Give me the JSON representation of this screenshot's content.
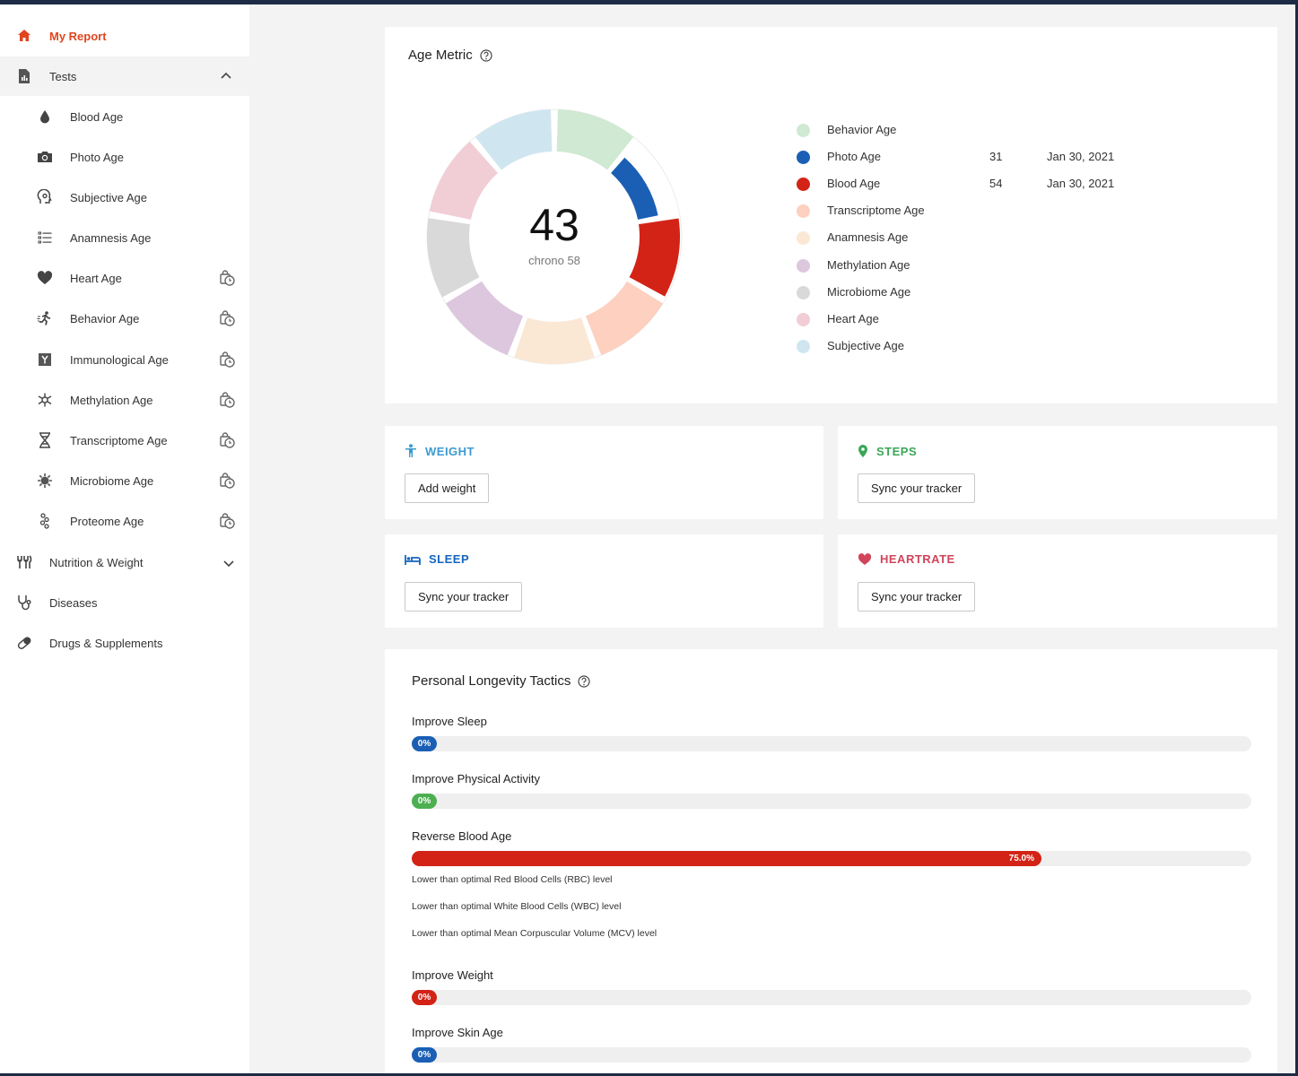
{
  "colors": {
    "accent": "#e0451e",
    "blue": "#1a5fb4",
    "red": "#d32317",
    "green": "#4caf50",
    "weight": "#3b9bd1",
    "sleep": "#1565c0",
    "heartrate": "#d0455b",
    "steps": "#3aa757"
  },
  "sidebar": {
    "my_report": "My Report",
    "tests": "Tests",
    "sub_items": [
      {
        "label": "Blood Age",
        "icon": "drop-icon"
      },
      {
        "label": "Photo Age",
        "icon": "camera-icon"
      },
      {
        "label": "Subjective Age",
        "icon": "head-icon"
      },
      {
        "label": "Anamnesis Age",
        "icon": "list-icon"
      },
      {
        "label": "Heart Age",
        "icon": "heart-icon"
      },
      {
        "label": "Behavior Age",
        "icon": "runner-icon"
      },
      {
        "label": "Immunological Age",
        "icon": "antibody-icon"
      },
      {
        "label": "Methylation Age",
        "icon": "molecule-icon"
      },
      {
        "label": "Transcriptome Age",
        "icon": "dna-icon"
      },
      {
        "label": "Microbiome Age",
        "icon": "virus-icon"
      },
      {
        "label": "Proteome Age",
        "icon": "protein-icon"
      }
    ],
    "nutrition": "Nutrition & Weight",
    "diseases": "Diseases",
    "drugs": "Drugs & Supplements"
  },
  "age_metric": {
    "title": "Age Metric",
    "center_value": "43",
    "center_sub": "chrono 58",
    "legend": [
      {
        "label": "Behavior Age",
        "color": "#cfe9d3",
        "value": "",
        "date": ""
      },
      {
        "label": "Photo Age",
        "color": "#1a5fb4",
        "value": "31",
        "date": "Jan 30, 2021"
      },
      {
        "label": "Blood Age",
        "color": "#d32317",
        "value": "54",
        "date": "Jan 30, 2021"
      },
      {
        "label": "Transcriptome Age",
        "color": "#fdd0bf",
        "value": "",
        "date": ""
      },
      {
        "label": "Anamnesis Age",
        "color": "#fae8d5",
        "value": "",
        "date": ""
      },
      {
        "label": "Methylation Age",
        "color": "#dcc7de",
        "value": "",
        "date": ""
      },
      {
        "label": "Microbiome Age",
        "color": "#d9d9d9",
        "value": "",
        "date": ""
      },
      {
        "label": "Heart Age",
        "color": "#f1cdd6",
        "value": "",
        "date": ""
      },
      {
        "label": "Subjective Age",
        "color": "#cfe6f1",
        "value": "",
        "date": ""
      }
    ]
  },
  "tiles": {
    "weight": {
      "title": "WEIGHT",
      "button": "Add weight"
    },
    "steps": {
      "title": "STEPS",
      "button": "Sync your tracker"
    },
    "sleep": {
      "title": "SLEEP",
      "button": "Sync your tracker"
    },
    "heartrate": {
      "title": "HEARTRATE",
      "button": "Sync your tracker"
    }
  },
  "tactics": {
    "title": "Personal Longevity Tactics",
    "items": [
      {
        "label": "Improve Sleep",
        "progress": 0,
        "text": "0%",
        "color": "#1a5fb4"
      },
      {
        "label": "Improve Physical Activity",
        "progress": 0,
        "text": "0%",
        "color": "#4caf50"
      },
      {
        "label": "Reverse Blood Age",
        "progress": 0.75,
        "text": "75.0%",
        "color": "#d32317",
        "notes": [
          "Lower than optimal Red Blood Cells (RBC) level",
          "Lower than optimal White Blood Cells (WBC) level",
          "Lower than optimal Mean Corpuscular Volume (MCV) level"
        ]
      },
      {
        "label": "Improve Weight",
        "progress": 0,
        "text": "0%",
        "color": "#d32317"
      },
      {
        "label": "Improve Skin Age",
        "progress": 0,
        "text": "0%",
        "color": "#1a5fb4"
      }
    ]
  }
}
